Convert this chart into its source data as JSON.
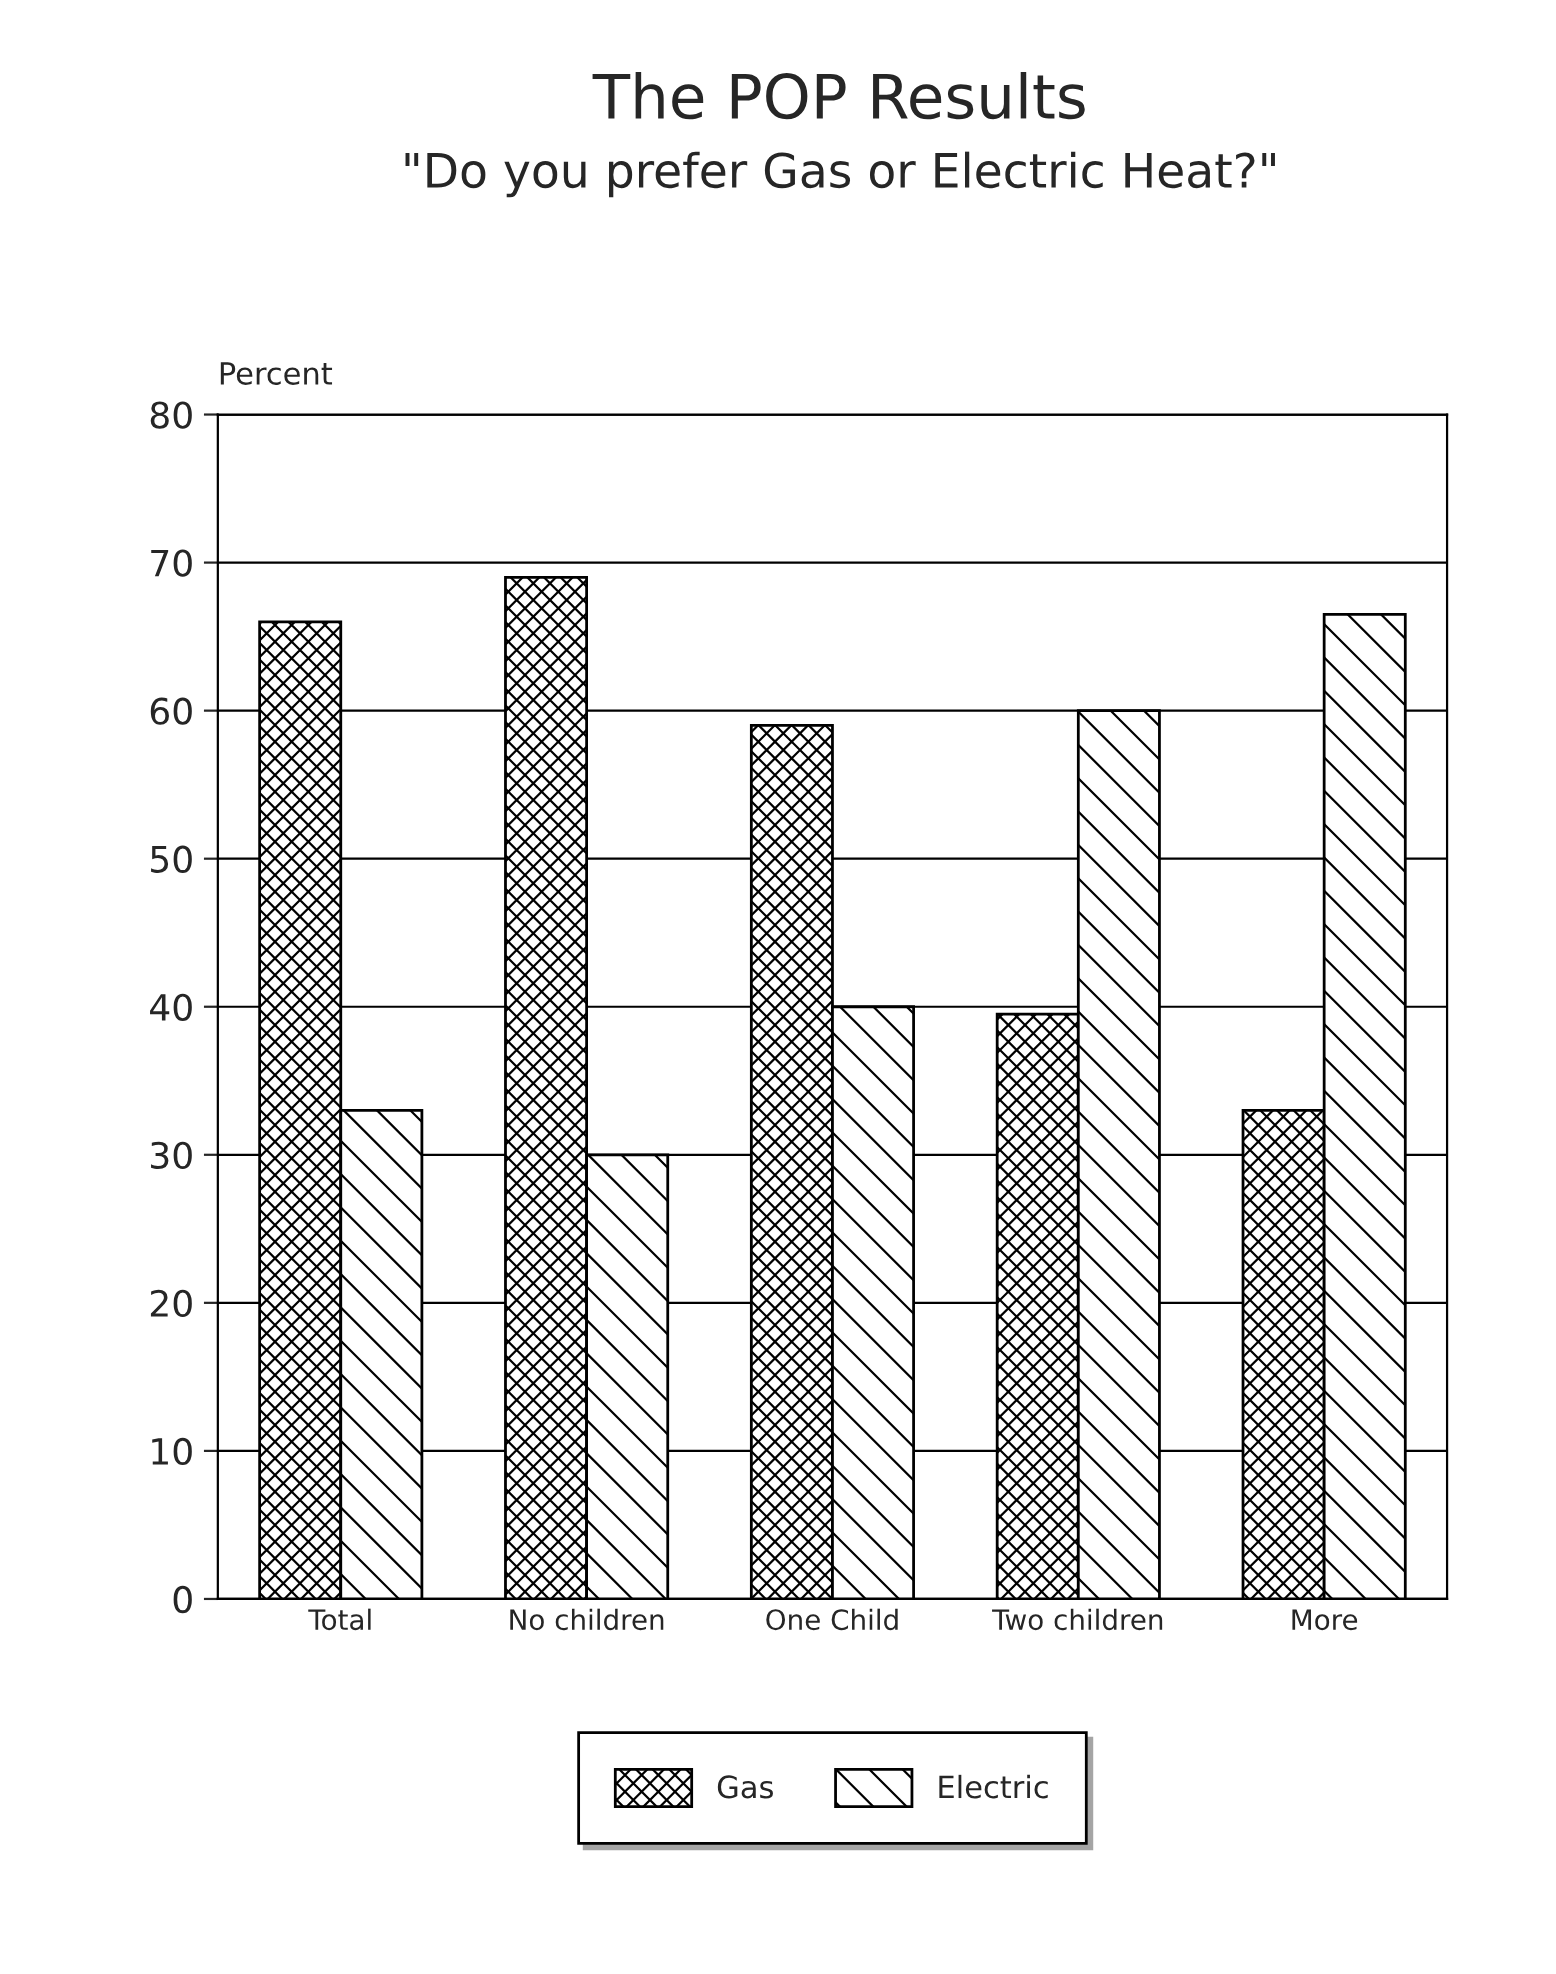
{
  "chart_data": {
    "type": "bar",
    "title": "The POP Results",
    "subtitle": "\"Do you prefer Gas or Electric Heat?\"",
    "ylabel": "Percent",
    "categories": [
      "Total",
      "No children",
      "One Child",
      "Two children",
      "More"
    ],
    "series": [
      {
        "name": "Gas",
        "color": "#000000",
        "values": [
          66,
          69,
          59,
          39.5,
          33
        ]
      },
      {
        "name": "Electric",
        "color": "#000000",
        "values": [
          33,
          30,
          40,
          60,
          66.5
        ]
      }
    ],
    "ylim": [
      0,
      80
    ],
    "yticks": [
      0,
      10,
      20,
      30,
      40,
      50,
      60,
      70,
      80
    ],
    "grid": "y",
    "legend": "bottom"
  }
}
